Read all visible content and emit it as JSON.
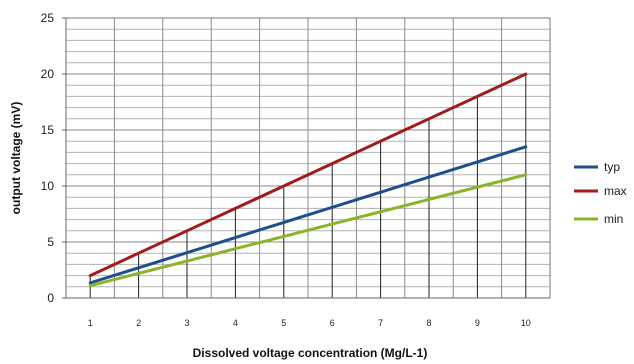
{
  "chart_data": {
    "type": "line",
    "xlabel": "Dissolved voltage concentration (Mg/L-1)",
    "ylabel": "output voltage (mV)",
    "x": [
      1,
      2,
      3,
      4,
      5,
      6,
      7,
      8,
      9,
      10
    ],
    "x_ticks": [
      "1",
      "2",
      "3",
      "4",
      "5",
      "6",
      "7",
      "8",
      "9",
      "10"
    ],
    "ylim": [
      0,
      25
    ],
    "y_ticks": [
      "0",
      "5",
      "10",
      "15",
      "20",
      "25"
    ],
    "y_major_step": 5,
    "y_minor_step": 1,
    "grid": true,
    "legend_position": "right",
    "series": [
      {
        "name": "typ",
        "color": "#1f4e8c",
        "values": [
          1.35,
          2.7,
          4.05,
          5.4,
          6.75,
          8.1,
          9.45,
          10.8,
          12.15,
          13.5
        ]
      },
      {
        "name": "max",
        "color": "#a01c1c",
        "values": [
          2,
          4,
          6,
          8,
          10,
          12,
          14,
          16,
          18,
          20
        ]
      },
      {
        "name": "min",
        "color": "#8db32b",
        "values": [
          1.1,
          2.2,
          3.3,
          4.4,
          5.5,
          6.6,
          7.7,
          8.8,
          9.9,
          11
        ]
      }
    ]
  }
}
